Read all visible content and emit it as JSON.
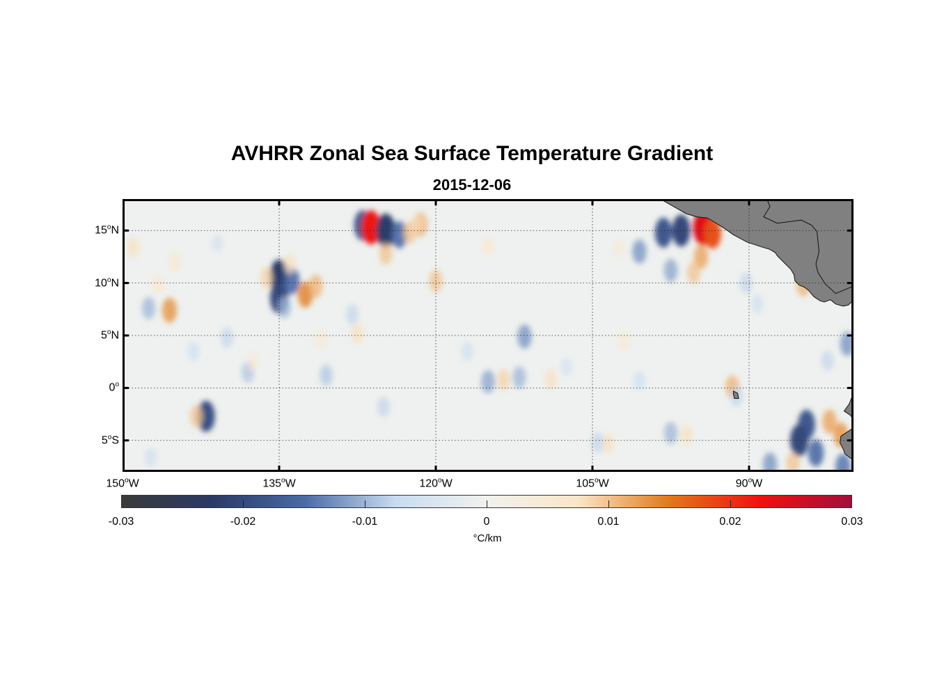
{
  "title": "AVHRR Zonal Sea Surface Temperature Gradient",
  "subtitle": "2015-12-06",
  "lat_labels": [
    {
      "deg": "15",
      "hemi": "N",
      "value": 15
    },
    {
      "deg": "10",
      "hemi": "N",
      "value": 10
    },
    {
      "deg": "5",
      "hemi": "N",
      "value": 5
    },
    {
      "deg": "0",
      "hemi": "",
      "value": 0
    },
    {
      "deg": "5",
      "hemi": "S",
      "value": -5
    }
  ],
  "lon_labels": [
    {
      "deg": "150",
      "hemi": "W",
      "value": -150
    },
    {
      "deg": "135",
      "hemi": "W",
      "value": -135
    },
    {
      "deg": "120",
      "hemi": "W",
      "value": -120
    },
    {
      "deg": "105",
      "hemi": "W",
      "value": -105
    },
    {
      "deg": "90",
      "hemi": "W",
      "value": -90
    }
  ],
  "map_extent": {
    "lon_min": -150,
    "lon_max": -80,
    "lat_min": -8,
    "lat_max": 18
  },
  "colorbar": {
    "min": -0.03,
    "max": 0.03,
    "ticks": [
      "-0.03",
      "-0.02",
      "-0.01",
      "0",
      "0.01",
      "0.02",
      "0.03"
    ],
    "unit": "°C/km",
    "colors": [
      "#3a3a3a",
      "#2a3a66",
      "#4a6aa6",
      "#c8dcf0",
      "#f0f2ee",
      "#fbe6c8",
      "#e07a1a",
      "#f01010",
      "#a0103a"
    ]
  },
  "land_color": "#808080",
  "features": [
    {
      "lon": -127.0,
      "lat": 15.5,
      "v": -0.018
    },
    {
      "lon": -126.2,
      "lat": 15.3,
      "v": 0.022
    },
    {
      "lon": -124.8,
      "lat": 15.0,
      "v": -0.022
    },
    {
      "lon": -123.5,
      "lat": 14.6,
      "v": -0.015
    },
    {
      "lon": -121.5,
      "lat": 15.6,
      "v": 0.012
    },
    {
      "lon": -122.5,
      "lat": 14.8,
      "v": 0.01
    },
    {
      "lon": -124.8,
      "lat": 12.8,
      "v": 0.01
    },
    {
      "lon": -135.0,
      "lat": 10.6,
      "v": -0.022
    },
    {
      "lon": -135.0,
      "lat": 8.6,
      "v": -0.02
    },
    {
      "lon": -133.8,
      "lat": 10.2,
      "v": -0.015
    },
    {
      "lon": -132.5,
      "lat": 8.9,
      "v": 0.014
    },
    {
      "lon": -131.5,
      "lat": 9.7,
      "v": 0.011
    },
    {
      "lon": -136.2,
      "lat": 10.5,
      "v": 0.009
    },
    {
      "lon": -134.0,
      "lat": 11.8,
      "v": 0.008
    },
    {
      "lon": -145.5,
      "lat": 7.4,
      "v": 0.013
    },
    {
      "lon": -147.5,
      "lat": 7.6,
      "v": -0.01
    },
    {
      "lon": -120.0,
      "lat": 10.2,
      "v": 0.01
    },
    {
      "lon": -98.2,
      "lat": 14.8,
      "v": -0.018
    },
    {
      "lon": -96.5,
      "lat": 15.0,
      "v": -0.02
    },
    {
      "lon": -94.4,
      "lat": 15.3,
      "v": 0.024
    },
    {
      "lon": -93.5,
      "lat": 14.7,
      "v": 0.018
    },
    {
      "lon": -94.6,
      "lat": 12.5,
      "v": 0.012
    },
    {
      "lon": -95.3,
      "lat": 11.0,
      "v": 0.01
    },
    {
      "lon": -100.5,
      "lat": 13.0,
      "v": -0.012
    },
    {
      "lon": -97.5,
      "lat": 11.2,
      "v": -0.011
    },
    {
      "lon": -84.8,
      "lat": 9.8,
      "v": 0.011
    },
    {
      "lon": -85.5,
      "lat": 16.5,
      "v": 0.01
    },
    {
      "lon": -111.5,
      "lat": 4.9,
      "v": -0.012
    },
    {
      "lon": -112.0,
      "lat": 1.0,
      "v": -0.01
    },
    {
      "lon": -113.5,
      "lat": 0.8,
      "v": 0.009
    },
    {
      "lon": -115.0,
      "lat": 0.6,
      "v": -0.011
    },
    {
      "lon": -91.6,
      "lat": 0.1,
      "v": 0.011
    },
    {
      "lon": -91.2,
      "lat": -0.8,
      "v": -0.008
    },
    {
      "lon": -84.5,
      "lat": -3.5,
      "v": -0.018
    },
    {
      "lon": -85.2,
      "lat": -5.0,
      "v": -0.02
    },
    {
      "lon": -83.6,
      "lat": -6.2,
      "v": -0.015
    },
    {
      "lon": -82.3,
      "lat": -3.2,
      "v": 0.012
    },
    {
      "lon": -81.2,
      "lat": -4.5,
      "v": 0.013
    },
    {
      "lon": -81.0,
      "lat": -7.5,
      "v": -0.014
    },
    {
      "lon": -85.8,
      "lat": -7.2,
      "v": 0.01
    },
    {
      "lon": -88.0,
      "lat": -7.3,
      "v": -0.012
    },
    {
      "lon": -97.5,
      "lat": -4.3,
      "v": -0.01
    },
    {
      "lon": -96.0,
      "lat": -4.5,
      "v": 0.008
    },
    {
      "lon": -142.0,
      "lat": -2.7,
      "v": -0.019
    },
    {
      "lon": -142.9,
      "lat": -2.7,
      "v": 0.01
    },
    {
      "lon": -143.2,
      "lat": 3.5,
      "v": -0.007
    },
    {
      "lon": -140.0,
      "lat": 4.8,
      "v": -0.008
    },
    {
      "lon": -128.0,
      "lat": 7.0,
      "v": -0.008
    },
    {
      "lon": -127.5,
      "lat": 5.2,
      "v": 0.008
    },
    {
      "lon": -131.0,
      "lat": 4.6,
      "v": 0.006
    },
    {
      "lon": -134.5,
      "lat": 7.7,
      "v": -0.01
    },
    {
      "lon": -138.0,
      "lat": 1.5,
      "v": -0.009
    },
    {
      "lon": -130.5,
      "lat": 1.2,
      "v": -0.009
    },
    {
      "lon": -125.0,
      "lat": -1.8,
      "v": -0.008
    },
    {
      "lon": -117.0,
      "lat": 3.5,
      "v": -0.007
    },
    {
      "lon": -107.5,
      "lat": 2.0,
      "v": -0.006
    },
    {
      "lon": -102.0,
      "lat": 4.5,
      "v": 0.006
    },
    {
      "lon": -145.0,
      "lat": 12.0,
      "v": 0.007
    },
    {
      "lon": -149.0,
      "lat": 13.4,
      "v": 0.008
    },
    {
      "lon": -137.5,
      "lat": 2.5,
      "v": 0.006
    },
    {
      "lon": -103.5,
      "lat": -5.3,
      "v": 0.008
    },
    {
      "lon": -104.5,
      "lat": -5.2,
      "v": -0.008
    },
    {
      "lon": -80.6,
      "lat": 4.2,
      "v": -0.012
    },
    {
      "lon": -82.5,
      "lat": 2.6,
      "v": -0.008
    },
    {
      "lon": -109.0,
      "lat": 0.8,
      "v": 0.008
    },
    {
      "lon": -100.5,
      "lat": 0.7,
      "v": -0.007
    },
    {
      "lon": -90.3,
      "lat": 10.0,
      "v": -0.008
    },
    {
      "lon": -89.2,
      "lat": 8.0,
      "v": -0.007
    },
    {
      "lon": -115.0,
      "lat": 13.5,
      "v": 0.007
    },
    {
      "lon": -102.5,
      "lat": 13.3,
      "v": 0.006
    },
    {
      "lon": -146.6,
      "lat": 9.9,
      "v": 0.007
    },
    {
      "lon": -121.7,
      "lat": 15.7,
      "v": 0.008
    },
    {
      "lon": -140.9,
      "lat": 13.8,
      "v": -0.006
    },
    {
      "lon": -147.3,
      "lat": -6.6,
      "v": -0.007
    }
  ],
  "land_polygons": [
    [
      [
        -98.5,
        18
      ],
      [
        -96.0,
        16.6
      ],
      [
        -95.0,
        16.3
      ],
      [
        -94.0,
        16.2
      ],
      [
        -92.5,
        15.3
      ],
      [
        -91.5,
        14.6
      ],
      [
        -90.2,
        13.9
      ],
      [
        -89.0,
        13.5
      ],
      [
        -88.0,
        13.2
      ],
      [
        -87.5,
        12.9
      ],
      [
        -87.3,
        12.6
      ],
      [
        -86.5,
        11.8
      ],
      [
        -86.0,
        11.3
      ],
      [
        -85.7,
        10.8
      ],
      [
        -85.6,
        10.2
      ],
      [
        -85.2,
        9.8
      ],
      [
        -84.7,
        9.6
      ],
      [
        -84.3,
        9.3
      ],
      [
        -83.8,
        8.7
      ],
      [
        -83.2,
        8.3
      ],
      [
        -82.8,
        8.2
      ],
      [
        -82.2,
        8.4
      ],
      [
        -81.7,
        8.0
      ],
      [
        -81.0,
        7.8
      ],
      [
        -80.5,
        7.9
      ],
      [
        -80.3,
        8.1
      ],
      [
        -80.0,
        8.3
      ],
      [
        -80.0,
        18
      ],
      [
        -88.3,
        18
      ],
      [
        -88.0,
        17.3
      ],
      [
        -88.6,
        16.3
      ],
      [
        -87.3,
        15.7
      ],
      [
        -85.0,
        16.0
      ],
      [
        -84.0,
        15.5
      ],
      [
        -83.5,
        14.9
      ],
      [
        -83.3,
        13.0
      ],
      [
        -83.6,
        11.8
      ],
      [
        -83.4,
        11.0
      ],
      [
        -82.7,
        9.9
      ],
      [
        -81.7,
        9.0
      ],
      [
        -80.5,
        9.5
      ],
      [
        -80.0,
        9.7
      ],
      [
        -80.0,
        18
      ]
    ],
    [
      [
        -80,
        -0.5
      ],
      [
        -80.4,
        -1.5
      ],
      [
        -80.9,
        -2.2
      ],
      [
        -80.3,
        -2.6
      ],
      [
        -80.0,
        -3.0
      ],
      [
        -80,
        -0.5
      ]
    ],
    [
      [
        -80,
        -3.8
      ],
      [
        -81.2,
        -4.6
      ],
      [
        -81.3,
        -5.2
      ],
      [
        -81.0,
        -5.8
      ],
      [
        -80.8,
        -6.3
      ],
      [
        -80,
        -6.9
      ],
      [
        -80,
        -3.8
      ]
    ]
  ],
  "islands": [
    [
      [
        -91.5,
        -0.3
      ],
      [
        -91.1,
        -0.5
      ],
      [
        -91.0,
        -1.0
      ],
      [
        -91.4,
        -1.0
      ],
      [
        -91.5,
        -0.6
      ],
      [
        -91.5,
        -0.3
      ]
    ]
  ]
}
